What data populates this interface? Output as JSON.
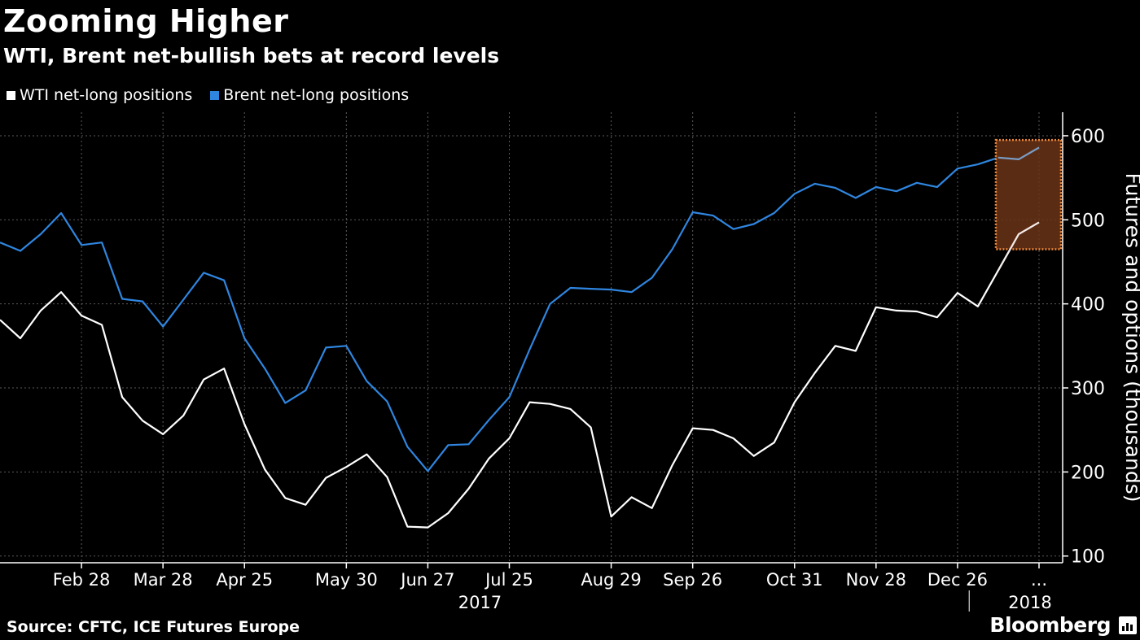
{
  "header": {
    "title": "Zooming Higher",
    "subtitle": "WTI, Brent net-bullish bets at record levels"
  },
  "footer": {
    "source": "Source: CFTC, ICE Futures Europe",
    "brand": "Bloomberg"
  },
  "colors": {
    "background": "#000000",
    "wti": "#ffffff",
    "brent": "#2f86e0",
    "highlight_fill": "#6b3418",
    "highlight_border": "#f08a3c"
  },
  "chart_data": {
    "type": "line",
    "title": "Zooming Higher",
    "subtitle": "WTI, Brent net-bullish bets at record levels",
    "ylabel": "Futures and options (thousands)",
    "ylim": [
      92,
      628
    ],
    "yticks": [
      100,
      200,
      300,
      400,
      500,
      600
    ],
    "grid": true,
    "legend_position": "top-left",
    "y_axis_side": "right",
    "x": [
      "2017-01-31",
      "2017-02-07",
      "2017-02-14",
      "2017-02-21",
      "2017-02-28",
      "2017-03-07",
      "2017-03-14",
      "2017-03-21",
      "2017-03-28",
      "2017-04-04",
      "2017-04-11",
      "2017-04-18",
      "2017-04-25",
      "2017-05-02",
      "2017-05-09",
      "2017-05-16",
      "2017-05-23",
      "2017-05-30",
      "2017-06-06",
      "2017-06-13",
      "2017-06-20",
      "2017-06-27",
      "2017-07-04",
      "2017-07-11",
      "2017-07-18",
      "2017-07-25",
      "2017-08-01",
      "2017-08-08",
      "2017-08-15",
      "2017-08-22",
      "2017-08-29",
      "2017-09-05",
      "2017-09-12",
      "2017-09-19",
      "2017-09-26",
      "2017-10-03",
      "2017-10-10",
      "2017-10-17",
      "2017-10-24",
      "2017-10-31",
      "2017-11-07",
      "2017-11-14",
      "2017-11-21",
      "2017-11-28",
      "2017-12-05",
      "2017-12-12",
      "2017-12-19",
      "2017-12-26",
      "2018-01-02",
      "2018-01-09",
      "2018-01-16",
      "2018-01-23"
    ],
    "x_tick_labels": [
      {
        "label": "Feb 28",
        "x": "2017-02-28"
      },
      {
        "label": "Mar 28",
        "x": "2017-03-28"
      },
      {
        "label": "Apr 25",
        "x": "2017-04-25"
      },
      {
        "label": "May 30",
        "x": "2017-05-30"
      },
      {
        "label": "Jun 27",
        "x": "2017-06-27"
      },
      {
        "label": "Jul 25",
        "x": "2017-07-25"
      },
      {
        "label": "Aug 29",
        "x": "2017-08-29"
      },
      {
        "label": "Sep 26",
        "x": "2017-09-26"
      },
      {
        "label": "Oct 31",
        "x": "2017-10-31"
      },
      {
        "label": "Nov 28",
        "x": "2017-11-28"
      },
      {
        "label": "Dec 26",
        "x": "2017-12-26"
      },
      {
        "label": "...",
        "x": "2018-01-23"
      }
    ],
    "year_labels": [
      {
        "label": "2017",
        "x": "2017-07-11"
      },
      {
        "label": "2018",
        "x": "2018-01-16"
      }
    ],
    "year_boundary": "2017-12-30",
    "series": [
      {
        "name": "WTI net-long positions",
        "color": "#ffffff",
        "values": [
          381,
          359,
          392,
          414,
          386,
          375,
          289,
          261,
          245,
          267,
          310,
          323,
          257,
          203,
          169,
          161,
          193,
          206,
          221,
          194,
          135,
          134,
          151,
          180,
          216,
          240,
          283,
          281,
          275,
          253,
          147,
          170,
          157,
          208,
          252,
          250,
          240,
          219,
          235,
          283,
          318,
          350,
          344,
          396,
          392,
          391,
          384,
          413,
          397,
          440,
          483,
          497
        ]
      },
      {
        "name": "Brent net-long positions",
        "color": "#2f86e0",
        "values": [
          473,
          463,
          483,
          508,
          470,
          473,
          406,
          403,
          373,
          405,
          437,
          428,
          359,
          323,
          282,
          297,
          348,
          350,
          308,
          284,
          230,
          201,
          232,
          233,
          262,
          289,
          346,
          400,
          419,
          418,
          417,
          414,
          431,
          465,
          509,
          505,
          489,
          495,
          508,
          531,
          543,
          538,
          526,
          539,
          534,
          544,
          539,
          561,
          566,
          574,
          572,
          586
        ]
      }
    ],
    "highlight": {
      "x_start": "2018-01-09",
      "x_end": "2018-01-23",
      "y_range": [
        465,
        595
      ]
    }
  }
}
